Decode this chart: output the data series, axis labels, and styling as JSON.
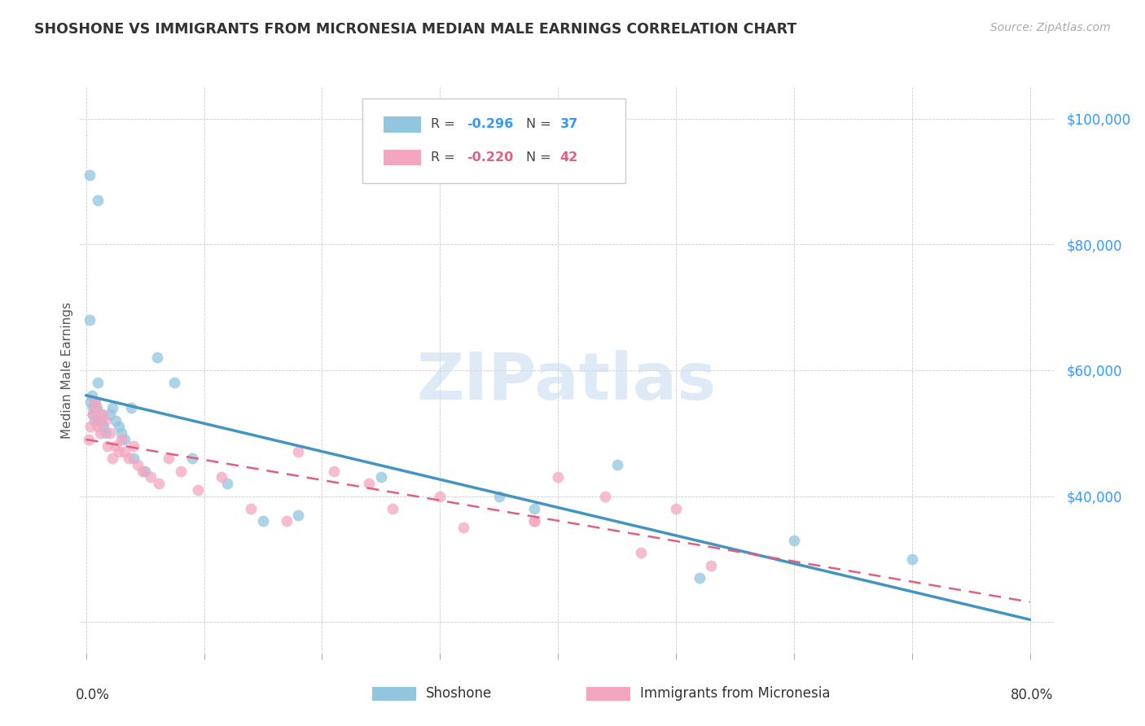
{
  "title": "SHOSHONE VS IMMIGRANTS FROM MICRONESIA MEDIAN MALE EARNINGS CORRELATION CHART",
  "source": "Source: ZipAtlas.com",
  "ylabel": "Median Male Earnings",
  "ylim": [
    15000,
    105000
  ],
  "xlim": [
    -0.005,
    0.82
  ],
  "y_ticks": [
    20000,
    40000,
    60000,
    80000,
    100000
  ],
  "y_tick_labels": [
    "",
    "$40,000",
    "$60,000",
    "$80,000",
    "$100,000"
  ],
  "blue_color": "#92c5de",
  "pink_color": "#f4a6c0",
  "blue_line_color": "#4393c3",
  "pink_line_color": "#e0607e",
  "shoshone_x": [
    0.003,
    0.01,
    0.003,
    0.004,
    0.005,
    0.006,
    0.006,
    0.007,
    0.008,
    0.009,
    0.01,
    0.012,
    0.013,
    0.015,
    0.017,
    0.02,
    0.022,
    0.025,
    0.028,
    0.03,
    0.033,
    0.038,
    0.04,
    0.05,
    0.06,
    0.075,
    0.09,
    0.12,
    0.18,
    0.25,
    0.35,
    0.45,
    0.6,
    0.7,
    0.38,
    0.52,
    0.15
  ],
  "shoshone_y": [
    91000,
    87000,
    68000,
    55000,
    56000,
    54000,
    53000,
    52000,
    55000,
    54000,
    58000,
    53000,
    52000,
    51000,
    50000,
    53000,
    54000,
    52000,
    51000,
    50000,
    49000,
    54000,
    46000,
    44000,
    62000,
    58000,
    46000,
    42000,
    37000,
    43000,
    40000,
    45000,
    33000,
    30000,
    38000,
    27000,
    36000
  ],
  "micronesia_x": [
    0.002,
    0.004,
    0.006,
    0.007,
    0.008,
    0.009,
    0.01,
    0.012,
    0.014,
    0.016,
    0.018,
    0.02,
    0.022,
    0.025,
    0.028,
    0.03,
    0.033,
    0.036,
    0.04,
    0.044,
    0.048,
    0.055,
    0.062,
    0.07,
    0.08,
    0.095,
    0.115,
    0.14,
    0.17,
    0.21,
    0.26,
    0.32,
    0.4,
    0.47,
    0.53,
    0.18,
    0.24,
    0.3,
    0.38,
    0.44,
    0.5,
    0.38
  ],
  "micronesia_y": [
    49000,
    51000,
    53000,
    55000,
    54000,
    52000,
    51000,
    50000,
    53000,
    52000,
    48000,
    50000,
    46000,
    48000,
    47000,
    49000,
    47000,
    46000,
    48000,
    45000,
    44000,
    43000,
    42000,
    46000,
    44000,
    41000,
    43000,
    38000,
    36000,
    44000,
    38000,
    35000,
    43000,
    31000,
    29000,
    47000,
    42000,
    40000,
    36000,
    40000,
    38000,
    36000
  ]
}
